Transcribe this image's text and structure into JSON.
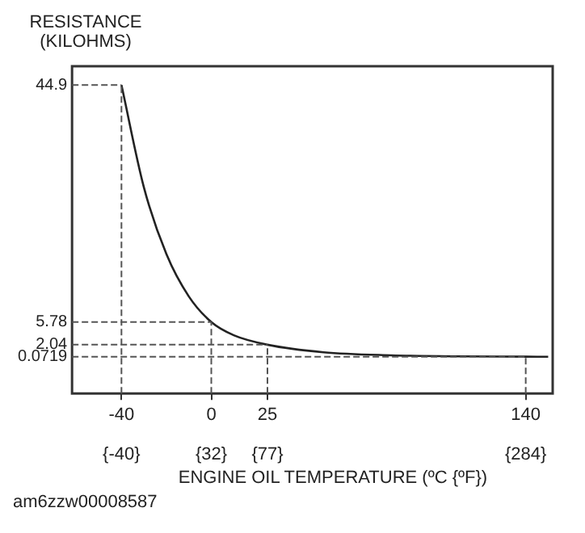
{
  "chart_data": {
    "type": "line",
    "ylabel": "RESISTANCE\n(KILOHMS)",
    "xlabel": "ENGINE OIL TEMPERATURE (ºC {ºF})",
    "annotations": [
      "am6zzw00008587"
    ],
    "x": [
      -40,
      -30,
      -20,
      -10,
      0,
      10,
      25,
      50,
      80,
      110,
      140,
      150
    ],
    "series": [
      {
        "color": "#222222",
        "values": [
          44.9,
          28,
          17,
          10,
          5.78,
          3.6,
          2.04,
          0.8,
          0.3,
          0.12,
          0.0719,
          0.06
        ]
      }
    ],
    "xlim": [
      -62,
      152
    ],
    "xticks": [
      -40,
      0,
      25,
      140
    ],
    "x2lim": [
      -79.6,
      305.6
    ],
    "x2ticks": [
      {
        "value": -40,
        "label": "{-40}"
      },
      {
        "value": 32,
        "label": "{32}"
      },
      {
        "value": 77,
        "label": "{77}"
      },
      {
        "value": 284,
        "label": "{284}"
      }
    ],
    "ylim": [
      -6,
      48
    ],
    "yticks": [
      0.0719,
      2.04,
      5.78,
      44.9
    ],
    "ref_lines": [
      {
        "axis": "x",
        "value": -40,
        "line_style": "dashed"
      },
      {
        "axis": "x",
        "value": 0,
        "line_style": "dashed"
      },
      {
        "axis": "x",
        "value": 25,
        "line_style": "dashed"
      },
      {
        "axis": "x",
        "value": 140,
        "line_style": "dashed"
      },
      {
        "axis": "y",
        "value": 44.9,
        "line_style": "dashed"
      },
      {
        "axis": "y",
        "value": 5.78,
        "line_style": "dashed"
      },
      {
        "axis": "y",
        "value": 2.04,
        "line_style": "dashed"
      },
      {
        "axis": "y",
        "value": 0.0719,
        "line_style": "dashed"
      }
    ],
    "grid": false,
    "legend": false,
    "marker": "none",
    "line_style": "solid"
  }
}
